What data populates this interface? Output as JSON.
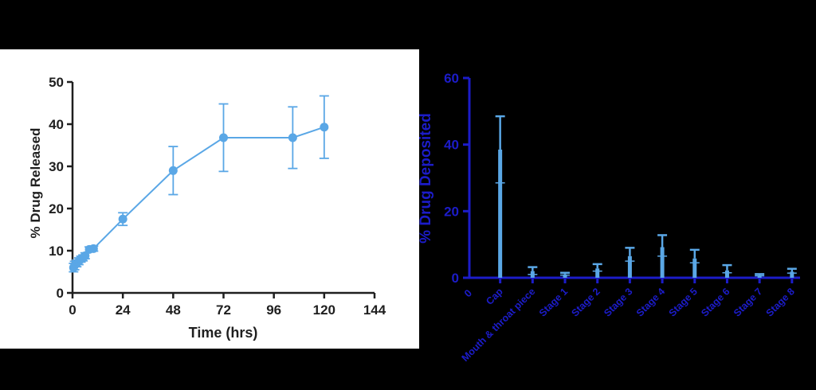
{
  "chart_data": [
    {
      "type": "line",
      "title": "",
      "xlabel": "Time (hrs)",
      "ylabel": "% Drug Released",
      "xlim": [
        0,
        144
      ],
      "ylim": [
        0,
        50
      ],
      "xticks": [
        "0",
        "24",
        "48",
        "72",
        "96",
        "120",
        "144"
      ],
      "yticks": [
        "0",
        "10",
        "20",
        "30",
        "40",
        "50"
      ],
      "grid": false,
      "colors": {
        "series": "#5aa7e6",
        "axis": "#1f1f1f"
      },
      "series": [
        {
          "x": [
            0.5,
            1,
            2,
            3,
            4,
            5,
            6,
            8,
            10,
            24,
            48,
            72,
            105,
            120
          ],
          "y": [
            6.0,
            6.5,
            7.0,
            7.5,
            8.0,
            8.3,
            8.8,
            10.3,
            10.5,
            17.5,
            29.0,
            36.8,
            36.8,
            39.3
          ],
          "error": [
            1.0,
            1.0,
            0.8,
            0.8,
            0.7,
            0.7,
            0.7,
            0.6,
            0.6,
            1.5,
            5.7,
            8.0,
            7.3,
            7.4
          ]
        }
      ]
    },
    {
      "type": "bar",
      "title": "",
      "xlabel": "",
      "ylabel": "% Drug Deposited",
      "ylim": [
        0,
        60
      ],
      "yticks": [
        "0",
        "20",
        "40",
        "60"
      ],
      "zero_tick_label": "0",
      "grid": false,
      "colors": {
        "bars": "#5aa7e6",
        "axis": "#1c1cc9"
      },
      "categories": [
        "Cap",
        "Mouth & throat piece",
        "Stage 1",
        "Stage 2",
        "Stage 3",
        "Stage 4",
        "Stage 5",
        "Stage 6",
        "Stage 7",
        "Stage 8"
      ],
      "values": [
        38.5,
        2.0,
        1.0,
        2.8,
        6.5,
        9.2,
        5.8,
        2.2,
        0.7,
        1.8
      ],
      "error": [
        10.0,
        1.2,
        0.5,
        1.3,
        2.5,
        3.6,
        2.6,
        1.6,
        0.4,
        0.9
      ],
      "lower_marks": [
        28.5,
        1.0,
        0.8,
        2.0,
        5.0,
        6.5,
        4.5,
        1.5,
        0.6,
        1.4
      ]
    }
  ]
}
